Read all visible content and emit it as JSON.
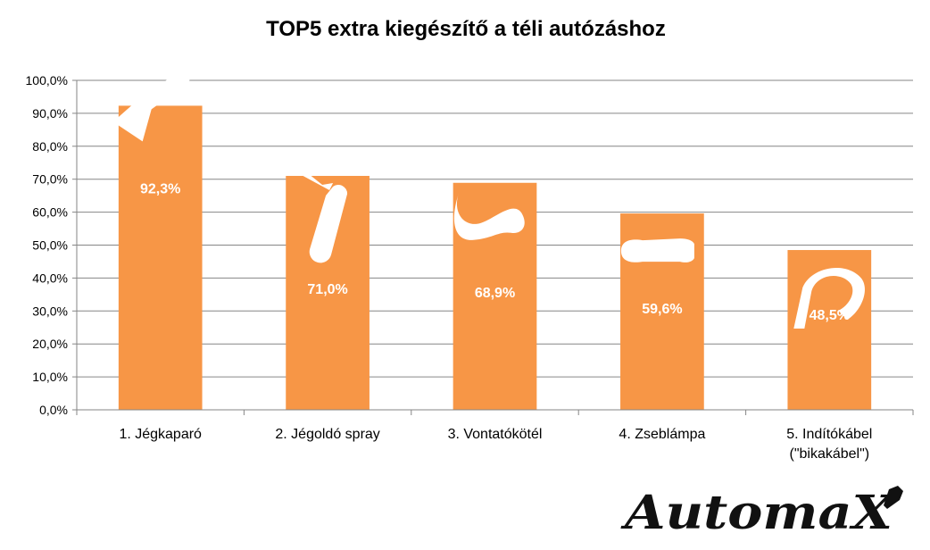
{
  "chart_data": {
    "type": "bar",
    "title": "TOP5 extra kiegészítő a téli autózáshoz",
    "xlabel": "",
    "ylabel": "",
    "categories": [
      [
        "1. Jégkaparó"
      ],
      [
        "2. Jégoldó spray"
      ],
      [
        "3. Vontatókötél"
      ],
      [
        "4. Zseblámpa"
      ],
      [
        "5. Indítókábel",
        "(\"bikakábel\")"
      ]
    ],
    "values": [
      92.3,
      71.0,
      68.9,
      59.6,
      48.5
    ],
    "data_labels": [
      "92,3%",
      "71,0%",
      "68,9%",
      "59,6%",
      "48,5%"
    ],
    "icons": [
      "ice-scraper-icon",
      "deicer-spray-icon",
      "tow-rope-icon",
      "flashlight-icon",
      "jumper-cable-icon"
    ],
    "ylim": [
      0,
      100
    ],
    "yticks": [
      "0,0%",
      "10,0%",
      "20,0%",
      "30,0%",
      "40,0%",
      "50,0%",
      "60,0%",
      "70,0%",
      "80,0%",
      "90,0%",
      "100,0%"
    ],
    "grid": true,
    "legend": "none",
    "bar_color": "#f79646",
    "gridline_color": "#868686",
    "axis_color": "#868686"
  },
  "logo": {
    "text": "AutomaX",
    "icon": "wrench-icon"
  }
}
